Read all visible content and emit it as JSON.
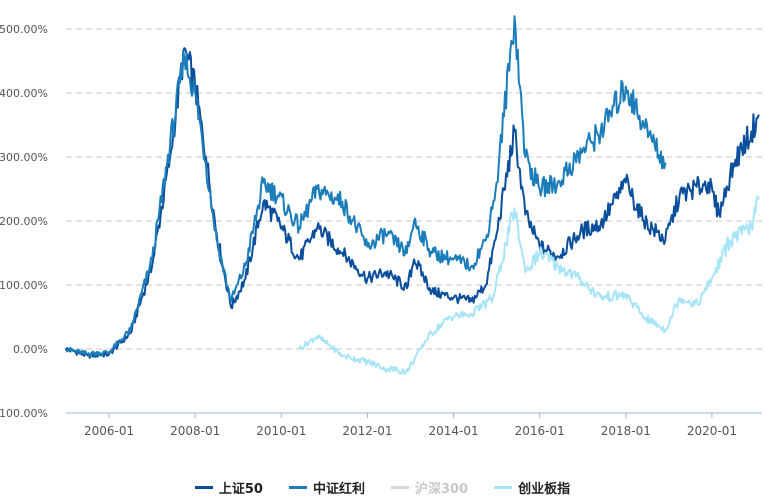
{
  "chart_data": {
    "type": "line",
    "title": "",
    "xlabel": "",
    "ylabel": "",
    "x_tick_labels": [
      "2006-01",
      "2008-01",
      "2010-01",
      "2012-01",
      "2014-01",
      "2016-01",
      "2018-01",
      "2020-01"
    ],
    "y_tick_labels": [
      "-100.00%",
      "0.00%",
      "100.00%",
      "200.00%",
      "300.00%",
      "400.00%",
      "500.00%"
    ],
    "ylim": [
      -100,
      500
    ],
    "y_unit": "%",
    "xlim": [
      "2005-01",
      "2021-02"
    ],
    "grid": true,
    "legend_position": "bottom",
    "series": [
      {
        "name": "上证50",
        "color": "#0b4f9c",
        "visible": true,
        "points": [
          [
            "2005-01",
            0
          ],
          [
            "2005-07",
            -10
          ],
          [
            "2006-01",
            -8
          ],
          [
            "2006-07",
            25
          ],
          [
            "2007-01",
            130
          ],
          [
            "2007-06",
            300
          ],
          [
            "2007-10",
            470
          ],
          [
            "2008-01",
            410
          ],
          [
            "2008-04",
            300
          ],
          [
            "2008-07",
            180
          ],
          [
            "2008-11",
            65
          ],
          [
            "2009-03",
            110
          ],
          [
            "2009-08",
            230
          ],
          [
            "2009-12",
            200
          ],
          [
            "2010-06",
            140
          ],
          [
            "2010-11",
            190
          ],
          [
            "2011-06",
            150
          ],
          [
            "2012-01",
            110
          ],
          [
            "2012-06",
            120
          ],
          [
            "2012-12",
            95
          ],
          [
            "2013-02",
            140
          ],
          [
            "2013-07",
            90
          ],
          [
            "2014-01",
            80
          ],
          [
            "2014-06",
            75
          ],
          [
            "2014-10",
            100
          ],
          [
            "2015-01",
            180
          ],
          [
            "2015-06",
            340
          ],
          [
            "2015-09",
            210
          ],
          [
            "2016-01",
            160
          ],
          [
            "2016-06",
            145
          ],
          [
            "2017-01",
            185
          ],
          [
            "2017-06",
            195
          ],
          [
            "2018-01",
            260
          ],
          [
            "2018-06",
            200
          ],
          [
            "2018-12",
            170
          ],
          [
            "2019-04",
            240
          ],
          [
            "2019-12",
            260
          ],
          [
            "2020-03",
            210
          ],
          [
            "2020-07",
            290
          ],
          [
            "2020-12",
            340
          ],
          [
            "2021-02",
            365
          ]
        ]
      },
      {
        "name": "中证红利",
        "color": "#1c7dbb",
        "visible": true,
        "points": [
          [
            "2005-01",
            0
          ],
          [
            "2005-07",
            -8
          ],
          [
            "2006-01",
            -5
          ],
          [
            "2006-07",
            30
          ],
          [
            "2007-01",
            140
          ],
          [
            "2007-06",
            320
          ],
          [
            "2007-10",
            455
          ],
          [
            "2008-01",
            400
          ],
          [
            "2008-04",
            290
          ],
          [
            "2008-07",
            170
          ],
          [
            "2008-11",
            75
          ],
          [
            "2009-03",
            130
          ],
          [
            "2009-08",
            260
          ],
          [
            "2009-12",
            240
          ],
          [
            "2010-06",
            190
          ],
          [
            "2010-11",
            250
          ],
          [
            "2011-06",
            230
          ],
          [
            "2012-01",
            160
          ],
          [
            "2012-06",
            180
          ],
          [
            "2012-12",
            150
          ],
          [
            "2013-02",
            200
          ],
          [
            "2013-07",
            150
          ],
          [
            "2014-01",
            140
          ],
          [
            "2014-06",
            130
          ],
          [
            "2014-10",
            170
          ],
          [
            "2015-01",
            260
          ],
          [
            "2015-06",
            520
          ],
          [
            "2015-09",
            300
          ],
          [
            "2016-01",
            250
          ],
          [
            "2016-06",
            260
          ],
          [
            "2017-01",
            310
          ],
          [
            "2017-06",
            340
          ],
          [
            "2018-01",
            410
          ],
          [
            "2018-06",
            350
          ],
          [
            "2018-12",
            290
          ]
        ]
      },
      {
        "name": "沪深300",
        "color": "#d6d6d6",
        "visible": false,
        "points": []
      },
      {
        "name": "创业板指",
        "color": "#a8e4f7",
        "visible": true,
        "points": [
          [
            "2010-06",
            0
          ],
          [
            "2010-11",
            20
          ],
          [
            "2011-06",
            -10
          ],
          [
            "2012-01",
            -20
          ],
          [
            "2012-06",
            -30
          ],
          [
            "2012-12",
            -35
          ],
          [
            "2013-06",
            20
          ],
          [
            "2013-12",
            50
          ],
          [
            "2014-06",
            55
          ],
          [
            "2014-12",
            80
          ],
          [
            "2015-06",
            220
          ],
          [
            "2015-09",
            120
          ],
          [
            "2016-01",
            150
          ],
          [
            "2016-06",
            130
          ],
          [
            "2016-12",
            110
          ],
          [
            "2017-06",
            80
          ],
          [
            "2018-01",
            85
          ],
          [
            "2018-06",
            50
          ],
          [
            "2018-12",
            30
          ],
          [
            "2019-04",
            80
          ],
          [
            "2019-09",
            70
          ],
          [
            "2020-01",
            110
          ],
          [
            "2020-06",
            170
          ],
          [
            "2020-12",
            190
          ],
          [
            "2021-02",
            235
          ]
        ]
      }
    ]
  }
}
